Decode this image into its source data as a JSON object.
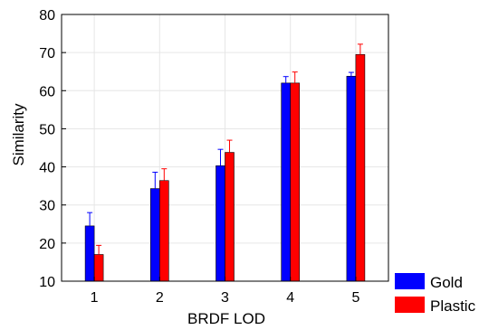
{
  "chart_data": {
    "type": "bar",
    "categories": [
      "1",
      "2",
      "3",
      "4",
      "5"
    ],
    "series": [
      {
        "name": "Gold",
        "color": "#0000ff",
        "values": [
          24.5,
          34.3,
          40.3,
          62.0,
          63.8
        ],
        "error_upper": [
          28.0,
          38.6,
          44.6,
          63.7,
          64.8
        ]
      },
      {
        "name": "Plastic",
        "color": "#ff0000",
        "values": [
          17.0,
          36.4,
          43.8,
          62.0,
          69.5
        ],
        "error_upper": [
          19.4,
          39.5,
          47.0,
          64.9,
          72.2
        ]
      }
    ],
    "xlabel": "BRDF LOD",
    "ylabel": "Similarity",
    "ylim": [
      10,
      80
    ],
    "yticks": [
      10,
      20,
      30,
      40,
      50,
      60,
      70,
      80
    ],
    "grid": true,
    "legend_position": "bottom-right outside"
  }
}
